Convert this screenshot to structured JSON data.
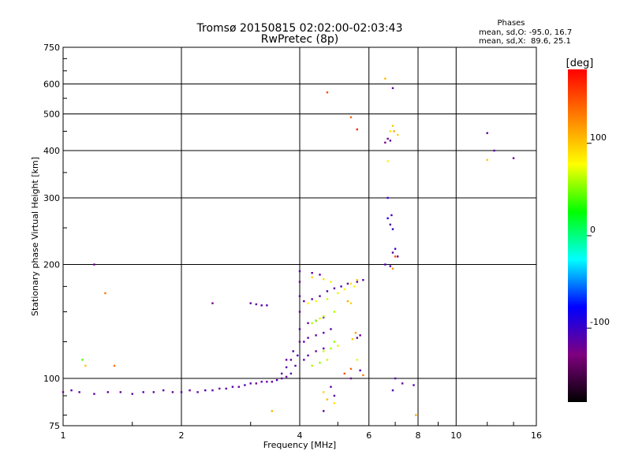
{
  "chart_data": {
    "type": "scatter",
    "title": "Tromsø 20150815 02:02:00-02:03:43",
    "subtitle": "RwPretec (8p)",
    "xlabel": "Frequency [MHz]",
    "ylabel": "Stationary phase Virtual Height [km]",
    "x_scale": "log",
    "y_scale": "log",
    "xlim": [
      1,
      16
    ],
    "ylim": [
      75,
      750
    ],
    "x_ticks": [
      1,
      2,
      4,
      6,
      8,
      10,
      16
    ],
    "y_ticks": [
      75,
      100,
      200,
      300,
      400,
      500,
      600,
      750
    ],
    "grid": true,
    "phase_stats": {
      "title": "Phases",
      "line_o": "mean, sd,O: -95.0, 16.7",
      "line_x": "mean, sd,X:  89.6, 25.1"
    },
    "colorbar": {
      "label": "[deg]",
      "range": [
        -180,
        180
      ],
      "ticks": [
        100,
        0,
        -100
      ],
      "colors": [
        "#000000",
        "#800080",
        "#0000ff",
        "#00ffff",
        "#00ff00",
        "#ffff00",
        "#ff8000",
        "#ff0000"
      ]
    },
    "series": [
      {
        "points": [
          [
            1.0,
            92,
            -120
          ],
          [
            1.05,
            93,
            -110
          ],
          [
            1.1,
            92,
            -115
          ],
          [
            1.2,
            91,
            -118
          ],
          [
            1.3,
            92,
            -112
          ],
          [
            1.4,
            92,
            -120
          ],
          [
            1.5,
            91,
            -115
          ],
          [
            1.6,
            92,
            -110
          ],
          [
            1.7,
            92,
            -118
          ],
          [
            1.8,
            93,
            -115
          ],
          [
            1.9,
            92,
            -120
          ],
          [
            2.0,
            92,
            -112
          ],
          [
            2.1,
            93,
            -115
          ],
          [
            2.2,
            92,
            -118
          ],
          [
            2.3,
            93,
            -110
          ],
          [
            2.4,
            93,
            -115
          ],
          [
            2.5,
            94,
            -120
          ],
          [
            2.6,
            94,
            -112
          ],
          [
            2.7,
            95,
            -115
          ],
          [
            2.8,
            95,
            -118
          ],
          [
            2.9,
            96,
            -110
          ],
          [
            3.0,
            97,
            -115
          ],
          [
            3.1,
            97,
            -120
          ],
          [
            3.2,
            98,
            -112
          ],
          [
            3.3,
            98,
            -118
          ],
          [
            3.4,
            98,
            -115
          ],
          [
            3.5,
            99,
            -110
          ],
          [
            3.6,
            100,
            -115
          ],
          [
            3.7,
            101,
            -118
          ],
          [
            3.8,
            103,
            -112
          ],
          [
            3.9,
            108,
            -115
          ],
          [
            3.95,
            115,
            -110
          ],
          [
            4.0,
            125,
            -118
          ],
          [
            4.0,
            135,
            -112
          ],
          [
            4.0,
            150,
            -115
          ],
          [
            4.0,
            165,
            -110
          ],
          [
            4.0,
            180,
            -118
          ],
          [
            4.0,
            192,
            -112
          ],
          [
            3.6,
            103,
            -115
          ],
          [
            3.7,
            107,
            -112
          ],
          [
            3.8,
            112,
            -118
          ],
          [
            3.85,
            118,
            -110
          ],
          [
            3.7,
            112,
            -115
          ],
          [
            3.0,
            158,
            -118
          ],
          [
            3.1,
            157,
            -115
          ],
          [
            3.2,
            156,
            -112
          ],
          [
            3.3,
            156,
            -110
          ],
          [
            4.1,
            160,
            -115
          ],
          [
            4.3,
            162,
            -112
          ],
          [
            4.5,
            165,
            -118
          ],
          [
            4.7,
            170,
            -110
          ],
          [
            4.9,
            173,
            -115
          ],
          [
            5.1,
            175,
            -112
          ],
          [
            5.3,
            178,
            -118
          ],
          [
            5.6,
            180,
            -110
          ],
          [
            5.8,
            182,
            -115
          ],
          [
            4.1,
            125,
            -115
          ],
          [
            4.2,
            128,
            -112
          ],
          [
            4.4,
            130,
            -118
          ],
          [
            4.6,
            132,
            -110
          ],
          [
            4.8,
            135,
            -115
          ],
          [
            4.1,
            112,
            -115
          ],
          [
            4.2,
            115,
            -112
          ],
          [
            4.4,
            118,
            -118
          ],
          [
            4.6,
            120,
            -110
          ],
          [
            4.3,
            190,
            -112
          ],
          [
            4.5,
            188,
            -115
          ],
          [
            4.2,
            140,
            -118
          ],
          [
            4.4,
            142,
            -110
          ],
          [
            4.6,
            145,
            -115
          ],
          [
            1.2,
            200,
            -120
          ],
          [
            2.4,
            158,
            -125
          ],
          [
            5.6,
            128,
            -120
          ],
          [
            5.7,
            130,
            -118
          ],
          [
            5.4,
            100,
            -120
          ],
          [
            5.7,
            105,
            -110
          ],
          [
            6.6,
            420,
            -125
          ],
          [
            6.7,
            430,
            -120
          ],
          [
            6.8,
            425,
            -112
          ],
          [
            6.9,
            585,
            -115
          ],
          [
            6.7,
            300,
            -100
          ],
          [
            6.7,
            265,
            -90
          ],
          [
            6.8,
            255,
            -110
          ],
          [
            6.9,
            248,
            -95
          ],
          [
            6.85,
            270,
            -105
          ],
          [
            7.0,
            220,
            -100
          ],
          [
            6.9,
            215,
            -112
          ],
          [
            7.1,
            210,
            -118
          ],
          [
            6.6,
            200,
            -105
          ],
          [
            6.8,
            198,
            -110
          ],
          [
            7.0,
            100,
            -115
          ],
          [
            7.3,
            97,
            -120
          ],
          [
            7.8,
            96,
            -110
          ],
          [
            12.0,
            445,
            -115
          ],
          [
            12.5,
            400,
            -112
          ],
          [
            14.0,
            382,
            -118
          ],
          [
            4.8,
            95,
            -115
          ],
          [
            6.9,
            93,
            -110
          ],
          [
            4.6,
            82,
            -115
          ],
          [
            4.9,
            90,
            -112
          ]
        ]
      },
      {
        "points": [
          [
            4.3,
            140,
            60
          ],
          [
            4.4,
            142,
            55
          ],
          [
            4.5,
            144,
            70
          ],
          [
            4.6,
            146,
            65
          ],
          [
            4.9,
            150,
            60
          ],
          [
            4.6,
            118,
            65
          ],
          [
            4.8,
            120,
            60
          ],
          [
            4.9,
            125,
            55
          ],
          [
            5.0,
            122,
            70
          ],
          [
            4.3,
            108,
            60
          ],
          [
            4.5,
            110,
            55
          ],
          [
            4.7,
            112,
            65
          ],
          [
            4.2,
            158,
            80
          ],
          [
            4.4,
            160,
            75
          ],
          [
            4.7,
            162,
            70
          ],
          [
            5.0,
            168,
            85
          ],
          [
            5.2,
            172,
            80
          ],
          [
            5.5,
            175,
            75
          ],
          [
            4.3,
            185,
            95
          ],
          [
            4.6,
            183,
            90
          ],
          [
            4.8,
            180,
            85
          ],
          [
            5.4,
            178,
            90
          ],
          [
            5.6,
            182,
            100
          ],
          [
            4.6,
            92,
            95
          ],
          [
            4.7,
            88,
            105
          ],
          [
            4.9,
            86,
            90
          ],
          [
            1.12,
            112,
            40
          ],
          [
            1.14,
            108,
            100
          ],
          [
            1.28,
            168,
            130
          ],
          [
            1.35,
            108,
            135
          ],
          [
            3.4,
            82,
            110
          ],
          [
            4.7,
            570,
            150
          ],
          [
            5.4,
            490,
            140
          ],
          [
            5.6,
            455,
            165
          ],
          [
            6.6,
            620,
            105
          ],
          [
            6.9,
            465,
            100
          ],
          [
            6.95,
            450,
            115
          ],
          [
            7.1,
            440,
            95
          ],
          [
            6.7,
            375,
            80
          ],
          [
            6.8,
            450,
            90
          ],
          [
            12.0,
            378,
            100
          ],
          [
            5.3,
            160,
            110
          ],
          [
            5.4,
            158,
            95
          ],
          [
            5.45,
            127,
            100
          ],
          [
            5.55,
            132,
            115
          ],
          [
            5.6,
            112,
            70
          ],
          [
            5.4,
            106,
            140
          ],
          [
            5.2,
            103,
            150
          ],
          [
            5.8,
            102,
            130
          ],
          [
            6.9,
            195,
            120
          ],
          [
            7.0,
            210,
            150
          ],
          [
            7.9,
            80,
            110
          ]
        ]
      }
    ]
  }
}
